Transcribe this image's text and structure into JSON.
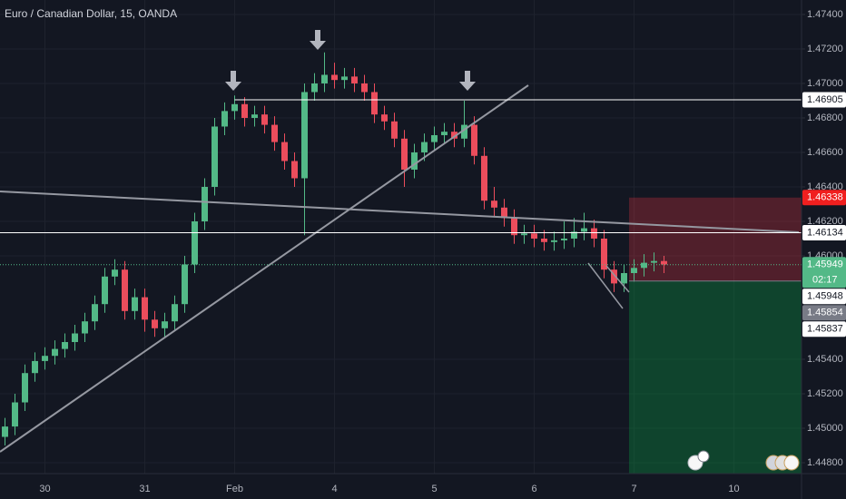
{
  "chart_data": {
    "type": "candlestick",
    "title": "Euro / Canadian Dollar, 15, OANDA",
    "up_color": "#53b987",
    "down_color": "#eb4d5c",
    "categories": [
      null,
      null,
      null,
      null,
      "30",
      null,
      null,
      null,
      null,
      null,
      null,
      null,
      null,
      null,
      "31",
      null,
      null,
      null,
      null,
      null,
      null,
      null,
      null,
      "Feb",
      null,
      null,
      null,
      null,
      null,
      null,
      null,
      null,
      null,
      "4",
      null,
      null,
      null,
      null,
      null,
      null,
      null,
      null,
      null,
      "5",
      null,
      null,
      null,
      null,
      null,
      null,
      null,
      null,
      null,
      "6",
      null,
      null,
      null,
      null,
      null,
      null,
      null,
      null,
      null,
      "7",
      null,
      null,
      null,
      null,
      null,
      null,
      null,
      null,
      null,
      "10",
      null,
      null,
      null,
      null,
      null,
      null
    ],
    "open": [
      1.4495,
      1.4501,
      1.4515,
      1.4532,
      1.4539,
      1.4542,
      1.4546,
      1.455,
      1.4555,
      1.4562,
      1.4572,
      1.4588,
      1.4592,
      1.4568,
      1.4576,
      1.4563,
      1.4558,
      1.4562,
      1.4572,
      1.4595,
      1.462,
      1.464,
      1.4675,
      1.4684,
      1.4688,
      1.468,
      1.4682,
      1.4676,
      1.4666,
      1.4655,
      1.4645,
      1.4695,
      1.47,
      1.4705,
      1.4702,
      1.4704,
      1.47,
      1.4695,
      1.4682,
      1.4678,
      1.4668,
      1.465,
      1.466,
      1.4666,
      1.467,
      1.4672,
      1.4668,
      1.4676,
      1.4658,
      1.4632,
      1.4628,
      1.4622,
      1.4612,
      1.4613,
      1.461,
      1.4608,
      1.4609,
      1.461,
      1.4614,
      1.4616,
      1.461,
      1.4592,
      1.4584,
      1.459,
      1.4593,
      1.4596,
      1.4597,
      null,
      null,
      null,
      null,
      null,
      null,
      null,
      null,
      null,
      null,
      null,
      null,
      null
    ],
    "high": [
      1.4506,
      1.452,
      1.4537,
      1.4544,
      1.4547,
      1.4551,
      1.4555,
      1.456,
      1.4567,
      1.4577,
      1.4593,
      1.4598,
      1.4597,
      1.4581,
      1.4581,
      1.4568,
      1.4567,
      1.4577,
      1.46,
      1.4625,
      1.4645,
      1.468,
      1.4689,
      1.4693,
      1.4692,
      1.4687,
      1.4687,
      1.4681,
      1.4671,
      1.466,
      1.47,
      1.4706,
      1.4718,
      1.4712,
      1.4709,
      1.4709,
      1.4705,
      1.47,
      1.4687,
      1.4683,
      1.4673,
      1.4665,
      1.4671,
      1.4675,
      1.4677,
      1.4677,
      1.469,
      1.4681,
      1.4663,
      1.464,
      1.4633,
      1.4627,
      1.4618,
      1.4618,
      1.4615,
      1.4614,
      1.462,
      1.4622,
      1.4625,
      1.4621,
      1.4615,
      1.4597,
      1.4595,
      1.4598,
      1.4601,
      1.4602,
      1.46,
      null,
      null,
      null,
      null,
      null,
      null,
      null,
      null,
      null,
      null,
      null,
      null,
      null
    ],
    "low": [
      1.449,
      1.4496,
      1.451,
      1.4527,
      1.4534,
      1.4537,
      1.4541,
      1.4545,
      1.455,
      1.4557,
      1.4567,
      1.4583,
      1.4563,
      1.4563,
      1.4556,
      1.4553,
      1.4553,
      1.4557,
      1.4567,
      1.459,
      1.4615,
      1.4635,
      1.467,
      1.4679,
      1.4675,
      1.4675,
      1.4671,
      1.4661,
      1.465,
      1.464,
      1.4612,
      1.469,
      1.4695,
      1.4697,
      1.4697,
      1.4695,
      1.469,
      1.4677,
      1.4673,
      1.4663,
      1.464,
      1.4645,
      1.4655,
      1.4661,
      1.4665,
      1.4663,
      1.4663,
      1.4653,
      1.4627,
      1.4623,
      1.4617,
      1.4607,
      1.4607,
      1.4605,
      1.4603,
      1.4603,
      1.4604,
      1.4605,
      1.4609,
      1.4605,
      1.4587,
      1.4579,
      1.4579,
      1.4585,
      1.4588,
      1.4591,
      1.459,
      null,
      null,
      null,
      null,
      null,
      null,
      null,
      null,
      null,
      null,
      null,
      null,
      null
    ],
    "close": [
      1.4501,
      1.4515,
      1.4532,
      1.4539,
      1.4542,
      1.4546,
      1.455,
      1.4555,
      1.4562,
      1.4572,
      1.4588,
      1.4592,
      1.4568,
      1.4576,
      1.4563,
      1.4558,
      1.4562,
      1.4572,
      1.4595,
      1.462,
      1.464,
      1.4675,
      1.4684,
      1.4688,
      1.468,
      1.4682,
      1.4676,
      1.4666,
      1.4655,
      1.4645,
      1.4695,
      1.47,
      1.4705,
      1.4702,
      1.4704,
      1.47,
      1.4695,
      1.4682,
      1.4678,
      1.4668,
      1.465,
      1.466,
      1.4666,
      1.467,
      1.4672,
      1.4668,
      1.4676,
      1.4658,
      1.4632,
      1.4628,
      1.4622,
      1.4612,
      1.4613,
      1.461,
      1.4608,
      1.4609,
      1.461,
      1.4614,
      1.4616,
      1.461,
      1.4592,
      1.4584,
      1.459,
      1.4593,
      1.4596,
      1.4597,
      1.4595,
      null,
      null,
      null,
      null,
      null,
      null,
      null,
      null,
      null,
      null,
      null,
      null,
      null
    ],
    "ylim": [
      1.44737,
      1.47484
    ],
    "yticks": [
      {
        "value": 1.474,
        "label": "1.47400"
      },
      {
        "value": 1.472,
        "label": "1.47200"
      },
      {
        "value": 1.47,
        "label": "1.47000"
      },
      {
        "value": 1.468,
        "label": "1.46800"
      },
      {
        "value": 1.466,
        "label": "1.46600"
      },
      {
        "value": 1.464,
        "label": "1.46400"
      },
      {
        "value": 1.462,
        "label": "1.46200"
      },
      {
        "value": 1.46,
        "label": "1.46000"
      },
      {
        "value": 1.454,
        "label": "1.45400"
      },
      {
        "value": 1.452,
        "label": "1.45200"
      },
      {
        "value": 1.45,
        "label": "1.45000"
      },
      {
        "value": 1.448,
        "label": "1.44800"
      }
    ],
    "grid": true,
    "price_lines": [
      {
        "value": 1.46905,
        "label": "1.46905",
        "color": "#ffffff"
      },
      {
        "value": 1.46338,
        "label": "1.46338",
        "color": "#f01f1f"
      },
      {
        "value": 1.46134,
        "label": "1.46134",
        "color": "#ffffff"
      },
      {
        "value": 1.45949,
        "label": "1.45949",
        "color": "#53b987",
        "countdown": "02:17"
      },
      {
        "value": 1.45948,
        "label": "1.45948",
        "color": "#ffffff"
      },
      {
        "value": 1.45854,
        "label": "1.45854",
        "color": "#787b86"
      },
      {
        "value": 1.45837,
        "label": "1.45837",
        "color": "#ffffff"
      }
    ]
  }
}
